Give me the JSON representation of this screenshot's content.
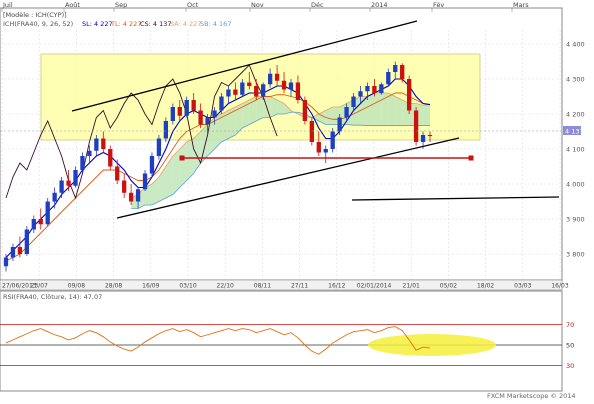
{
  "colors": {
    "background": "#ffffff",
    "grid": "#dcdcdc",
    "candle_up": "#1f3fbf",
    "candle_down": "#cc1111",
    "tenkan": "#0000c8",
    "kijun": "#e05a10",
    "chikou": "#3a0a2a",
    "kumo_bull": "#bfe6b8",
    "kumo_bear": "#f6c7a6",
    "kumo_bear_alt": "#b9d8ef",
    "highlight_box": "#ffffa8",
    "trendline": "#000000",
    "support_line": "#cc1111",
    "rsi_line": "#e07010",
    "rsi_ellipse": "#f4ee3a"
  },
  "header": {
    "model_label": "[Modèle : ICH(CYP)]",
    "ichimoku_label": "ICH(FRA40, 9, 26, 52)",
    "sl_label": "SL: 4 227",
    "tl_label": "TL: 4 227",
    "cs_label": "CS: 4 137",
    "sa_label": "SA: 4 227",
    "sb_label": "SB: 4 167"
  },
  "rsi_header": {
    "label": "RSI(FRA40, Clôture, 14): 47,07"
  },
  "footer": {
    "copyright": "FXCM Marketscope © 2014"
  },
  "chart_data": {
    "type": "candlestick",
    "title": "",
    "price_axis": {
      "ticks": [
        3800,
        3900,
        4000,
        4100,
        4200,
        4300,
        4400
      ],
      "tick_labels": [
        "3 800",
        "3 900",
        "4 000",
        "4 100",
        "4 200",
        "4 300",
        "4 400"
      ],
      "range": [
        3740,
        4440
      ],
      "last_price_label": "4 137"
    },
    "month_labels": [
      {
        "label": "Juil",
        "date": "27/06/2013"
      },
      {
        "label": "Août",
        "date": "29/07/2013"
      },
      {
        "label": "Sep",
        "date": "02/09/2013"
      },
      {
        "label": "Oct",
        "date": "01/10/2013"
      },
      {
        "label": "Nov",
        "date": "01/11/2013"
      },
      {
        "label": "Déc",
        "date": "02/12/2013"
      },
      {
        "label": "2014",
        "date": "02/01/2014"
      },
      {
        "label": "Fév",
        "date": "03/02/2014"
      },
      {
        "label": "Mars",
        "date": "03/03/2014"
      }
    ],
    "date_axis_labels": [
      "27/06/2013",
      "23/07",
      "09/08",
      "28/08",
      "16/09",
      "03/10",
      "22/10",
      "08/11",
      "27/11",
      "16/12",
      "02/01/2014",
      "21/01",
      "05/02",
      "18/02",
      "03/03",
      "16/03"
    ],
    "candles": [
      [
        3765,
        3800,
        3750,
        3790
      ],
      [
        3790,
        3830,
        3780,
        3820
      ],
      [
        3820,
        3850,
        3790,
        3800
      ],
      [
        3800,
        3880,
        3795,
        3870
      ],
      [
        3870,
        3910,
        3860,
        3900
      ],
      [
        3900,
        3930,
        3870,
        3885
      ],
      [
        3885,
        3960,
        3880,
        3950
      ],
      [
        3950,
        3990,
        3930,
        3975
      ],
      [
        3975,
        4020,
        3960,
        4010
      ],
      [
        4010,
        4040,
        3980,
        3995
      ],
      [
        3995,
        4050,
        3990,
        4040
      ],
      [
        4040,
        4090,
        4030,
        4080
      ],
      [
        4080,
        4110,
        4060,
        4095
      ],
      [
        4095,
        4140,
        4080,
        4130
      ],
      [
        4130,
        4150,
        4090,
        4100
      ],
      [
        4100,
        4110,
        4040,
        4050
      ],
      [
        4050,
        4070,
        4000,
        4010
      ],
      [
        4010,
        4030,
        3960,
        3975
      ],
      [
        3975,
        4000,
        3940,
        3950
      ],
      [
        3950,
        3990,
        3930,
        3985
      ],
      [
        3985,
        4040,
        3980,
        4030
      ],
      [
        4030,
        4090,
        4020,
        4080
      ],
      [
        4080,
        4140,
        4070,
        4130
      ],
      [
        4130,
        4190,
        4120,
        4180
      ],
      [
        4180,
        4230,
        4170,
        4220
      ],
      [
        4220,
        4240,
        4180,
        4195
      ],
      [
        4195,
        4250,
        4190,
        4240
      ],
      [
        4240,
        4260,
        4200,
        4210
      ],
      [
        4210,
        4230,
        4160,
        4170
      ],
      [
        4170,
        4200,
        4140,
        4190
      ],
      [
        4190,
        4220,
        4170,
        4210
      ],
      [
        4210,
        4260,
        4200,
        4250
      ],
      [
        4250,
        4280,
        4230,
        4270
      ],
      [
        4270,
        4290,
        4240,
        4255
      ],
      [
        4255,
        4300,
        4250,
        4290
      ],
      [
        4290,
        4320,
        4270,
        4280
      ],
      [
        4280,
        4300,
        4240,
        4250
      ],
      [
        4250,
        4290,
        4240,
        4285
      ],
      [
        4285,
        4330,
        4275,
        4315
      ],
      [
        4315,
        4340,
        4280,
        4295
      ],
      [
        4295,
        4320,
        4260,
        4270
      ],
      [
        4270,
        4300,
        4250,
        4290
      ],
      [
        4290,
        4310,
        4230,
        4240
      ],
      [
        4240,
        4250,
        4170,
        4180
      ],
      [
        4180,
        4190,
        4110,
        4120
      ],
      [
        4120,
        4150,
        4080,
        4090
      ],
      [
        4090,
        4110,
        4060,
        4100
      ],
      [
        4100,
        4160,
        4090,
        4150
      ],
      [
        4150,
        4200,
        4140,
        4190
      ],
      [
        4190,
        4230,
        4180,
        4220
      ],
      [
        4220,
        4260,
        4210,
        4250
      ],
      [
        4250,
        4280,
        4230,
        4265
      ],
      [
        4265,
        4290,
        4240,
        4280
      ],
      [
        4280,
        4300,
        4250,
        4260
      ],
      [
        4260,
        4290,
        4255,
        4285
      ],
      [
        4285,
        4330,
        4280,
        4320
      ],
      [
        4320,
        4350,
        4300,
        4340
      ],
      [
        4340,
        4345,
        4290,
        4300
      ],
      [
        4300,
        4310,
        4200,
        4210
      ],
      [
        4210,
        4220,
        4110,
        4120
      ],
      [
        4120,
        4150,
        4100,
        4140
      ],
      [
        4140,
        4150,
        4120,
        4137
      ]
    ],
    "tenkan_sen": [
      3790,
      3810,
      3830,
      3850,
      3880,
      3900,
      3920,
      3940,
      3970,
      3990,
      4010,
      4040,
      4060,
      4080,
      4090,
      4080,
      4060,
      4040,
      4010,
      3990,
      3990,
      4020,
      4060,
      4100,
      4150,
      4180,
      4200,
      4210,
      4200,
      4190,
      4190,
      4210,
      4230,
      4240,
      4250,
      4260,
      4260,
      4260,
      4270,
      4280,
      4280,
      4270,
      4260,
      4230,
      4200,
      4160,
      4130,
      4130,
      4150,
      4180,
      4210,
      4230,
      4250,
      4260,
      4270,
      4280,
      4300,
      4300,
      4280,
      4250,
      4230,
      4227
    ],
    "kijun_sen": [
      3780,
      3790,
      3800,
      3820,
      3840,
      3860,
      3880,
      3900,
      3920,
      3940,
      3960,
      3980,
      4000,
      4020,
      4040,
      4040,
      4040,
      4030,
      4020,
      4010,
      4010,
      4020,
      4040,
      4070,
      4100,
      4130,
      4150,
      4160,
      4170,
      4170,
      4180,
      4190,
      4200,
      4210,
      4220,
      4230,
      4240,
      4250,
      4250,
      4255,
      4255,
      4250,
      4245,
      4235,
      4220,
      4200,
      4190,
      4185,
      4185,
      4190,
      4200,
      4210,
      4220,
      4230,
      4240,
      4250,
      4260,
      4260,
      4250,
      4240,
      4230,
      4227
    ],
    "chikou_span": [
      3960,
      4020,
      4060,
      4040,
      4090,
      4140,
      4180,
      4130,
      4080,
      4010,
      3960,
      4030,
      4120,
      4190,
      4210,
      4160,
      4190,
      4230,
      4260,
      4240,
      4200,
      4170,
      4230,
      4280,
      4300,
      4260,
      4200,
      4100,
      4060,
      4140,
      4250,
      4290,
      4280,
      4300,
      4320,
      4340,
      4290,
      4250,
      4190,
      4137
    ],
    "senkou_a": [
      3960,
      3970,
      3990,
      4000,
      4020,
      4050,
      4080,
      4100,
      4120,
      4130,
      4150,
      4170,
      4190,
      4200,
      4210,
      4220,
      4230,
      4240,
      4250,
      4250,
      4250,
      4240,
      4230,
      4210,
      4200,
      4190,
      4190,
      4200,
      4210,
      4220,
      4220,
      4230,
      4240,
      4250,
      4250,
      4260,
      4260,
      4260,
      4250,
      4240,
      4230,
      4230,
      4225,
      4227
    ],
    "senkou_b": [
      3930,
      3930,
      3940,
      3940,
      3950,
      3960,
      3970,
      3990,
      4010,
      4030,
      4060,
      4080,
      4100,
      4120,
      4130,
      4140,
      4160,
      4170,
      4180,
      4190,
      4190,
      4200,
      4200,
      4205,
      4205,
      4200,
      4190,
      4180,
      4170,
      4170,
      4170,
      4170,
      4168,
      4168,
      4167,
      4167,
      4167,
      4167,
      4167,
      4167,
      4167,
      4167,
      4167,
      4167
    ],
    "rsi": {
      "ticks": [
        30,
        50,
        70
      ],
      "tick_labels": [
        "30",
        "50",
        "70"
      ],
      "values": [
        52,
        55,
        58,
        61,
        64,
        66,
        63,
        60,
        58,
        55,
        57,
        61,
        64,
        62,
        58,
        53,
        49,
        46,
        44,
        48,
        53,
        57,
        61,
        64,
        66,
        63,
        65,
        62,
        58,
        60,
        62,
        64,
        66,
        64,
        66,
        65,
        62,
        64,
        66,
        63,
        60,
        62,
        57,
        50,
        44,
        41,
        46,
        52,
        56,
        60,
        63,
        64,
        65,
        62,
        64,
        67,
        68,
        64,
        55,
        45,
        48,
        47
      ]
    }
  }
}
